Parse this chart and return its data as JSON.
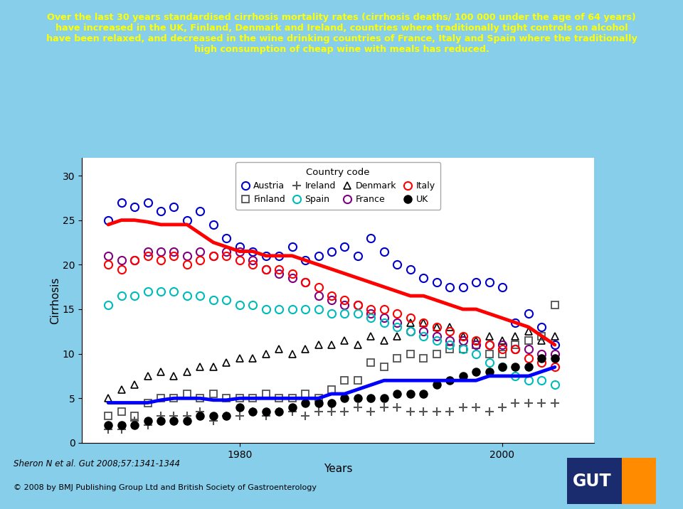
{
  "title_text": "Over the last 30 years standardised cirrhosis mortality rates (cirrhosis deaths/ 100 000 under the age of 64 years)\nhave increased in the UK, Finland, Denmark and Ireland, countries where traditionally tight controls on alcohol\nhave been relaxed, and decreased in the wine drinking countries of France, Italy and Spain where the traditionally\nhigh consumption of cheap wine with meals has reduced.",
  "title_color": "#FFFF00",
  "background_color": "#87CEEB",
  "plot_bg": "#FFFFFF",
  "xlabel": "Years",
  "ylabel": "Cirrhosis",
  "ylim": [
    0,
    32
  ],
  "yticks": [
    0,
    5,
    10,
    15,
    20,
    25,
    30
  ],
  "austria": {
    "label": "Austria",
    "color": "#0000CC",
    "marker": "o",
    "years": [
      1970,
      1971,
      1972,
      1973,
      1974,
      1975,
      1976,
      1977,
      1978,
      1979,
      1980,
      1981,
      1982,
      1983,
      1984,
      1985,
      1986,
      1987,
      1988,
      1989,
      1990,
      1991,
      1992,
      1993,
      1994,
      1995,
      1996,
      1997,
      1998,
      1999,
      2000,
      2001,
      2002,
      2003,
      2004
    ],
    "values": [
      25.0,
      27.0,
      26.5,
      27.0,
      26.0,
      26.5,
      25.0,
      26.0,
      24.5,
      23.0,
      22.0,
      21.5,
      21.0,
      21.0,
      22.0,
      20.5,
      21.0,
      21.5,
      22.0,
      21.0,
      23.0,
      21.5,
      20.0,
      19.5,
      18.5,
      18.0,
      17.5,
      17.5,
      18.0,
      18.0,
      17.5,
      13.5,
      14.5,
      13.0,
      11.0
    ]
  },
  "denmark": {
    "label": "Denmark",
    "color": "#000000",
    "marker": "^",
    "years": [
      1970,
      1971,
      1972,
      1973,
      1974,
      1975,
      1976,
      1977,
      1978,
      1979,
      1980,
      1981,
      1982,
      1983,
      1984,
      1985,
      1986,
      1987,
      1988,
      1989,
      1990,
      1991,
      1992,
      1993,
      1994,
      1995,
      1996,
      1997,
      1998,
      1999,
      2000,
      2001,
      2002,
      2003,
      2004
    ],
    "values": [
      5.0,
      6.0,
      6.5,
      7.5,
      8.0,
      7.5,
      8.0,
      8.5,
      8.5,
      9.0,
      9.5,
      9.5,
      10.0,
      10.5,
      10.0,
      10.5,
      11.0,
      11.0,
      11.5,
      11.0,
      12.0,
      11.5,
      12.0,
      13.5,
      13.5,
      13.0,
      13.0,
      12.0,
      11.5,
      12.0,
      11.5,
      12.0,
      12.5,
      11.5,
      12.0
    ]
  },
  "finland": {
    "label": "Finland",
    "color": "#444444",
    "marker": "s",
    "years": [
      1970,
      1971,
      1972,
      1973,
      1974,
      1975,
      1976,
      1977,
      1978,
      1979,
      1980,
      1981,
      1982,
      1983,
      1984,
      1985,
      1986,
      1987,
      1988,
      1989,
      1990,
      1991,
      1992,
      1993,
      1994,
      1995,
      1996,
      1997,
      1998,
      1999,
      2000,
      2001,
      2002,
      2003,
      2004
    ],
    "values": [
      3.0,
      3.5,
      3.0,
      4.5,
      5.0,
      5.0,
      5.5,
      5.0,
      5.5,
      5.0,
      5.0,
      5.0,
      5.5,
      5.0,
      5.0,
      5.5,
      5.0,
      6.0,
      7.0,
      7.0,
      9.0,
      8.5,
      9.5,
      10.0,
      9.5,
      10.0,
      10.5,
      10.5,
      11.0,
      10.0,
      10.0,
      11.0,
      11.5,
      12.0,
      15.5
    ]
  },
  "france": {
    "label": "France",
    "color": "#800080",
    "marker": "o",
    "years": [
      1970,
      1971,
      1972,
      1973,
      1974,
      1975,
      1976,
      1977,
      1978,
      1979,
      1980,
      1981,
      1982,
      1983,
      1984,
      1985,
      1986,
      1987,
      1988,
      1989,
      1990,
      1991,
      1992,
      1993,
      1994,
      1995,
      1996,
      1997,
      1998,
      1999,
      2000,
      2001,
      2002,
      2003,
      2004
    ],
    "values": [
      21.0,
      20.5,
      20.5,
      21.5,
      21.5,
      21.5,
      21.0,
      21.5,
      21.0,
      21.5,
      21.5,
      20.5,
      19.5,
      19.0,
      18.5,
      18.0,
      16.5,
      16.0,
      15.5,
      15.5,
      14.5,
      14.0,
      13.5,
      12.5,
      12.5,
      12.0,
      11.5,
      11.5,
      11.0,
      11.0,
      11.0,
      10.5,
      10.5,
      10.0,
      10.0
    ]
  },
  "ireland": {
    "label": "Ireland",
    "color": "#555555",
    "marker": "+",
    "years": [
      1970,
      1971,
      1972,
      1973,
      1974,
      1975,
      1976,
      1977,
      1978,
      1979,
      1980,
      1981,
      1982,
      1983,
      1984,
      1985,
      1986,
      1987,
      1988,
      1989,
      1990,
      1991,
      1992,
      1993,
      1994,
      1995,
      1996,
      1997,
      1998,
      1999,
      2000,
      2001,
      2002,
      2003,
      2004
    ],
    "values": [
      1.5,
      1.5,
      2.5,
      2.0,
      3.0,
      3.0,
      3.0,
      3.5,
      2.5,
      3.0,
      3.0,
      3.5,
      3.0,
      3.5,
      3.5,
      3.0,
      3.5,
      3.5,
      3.5,
      4.0,
      3.5,
      4.0,
      4.0,
      3.5,
      3.5,
      3.5,
      3.5,
      4.0,
      4.0,
      3.5,
      4.0,
      4.5,
      4.5,
      4.5,
      4.5
    ]
  },
  "italy": {
    "label": "Italy",
    "color": "#FF0000",
    "marker": "o",
    "years": [
      1970,
      1971,
      1972,
      1973,
      1974,
      1975,
      1976,
      1977,
      1978,
      1979,
      1980,
      1981,
      1982,
      1983,
      1984,
      1985,
      1986,
      1987,
      1988,
      1989,
      1990,
      1991,
      1992,
      1993,
      1994,
      1995,
      1996,
      1997,
      1998,
      1999,
      2000,
      2001,
      2002,
      2003,
      2004
    ],
    "values": [
      20.0,
      19.5,
      20.5,
      21.0,
      20.5,
      21.0,
      20.0,
      20.5,
      21.0,
      21.0,
      20.5,
      20.0,
      19.5,
      19.5,
      19.0,
      18.0,
      17.5,
      16.5,
      16.0,
      15.5,
      15.0,
      15.0,
      14.5,
      14.0,
      13.5,
      13.0,
      12.5,
      12.0,
      11.5,
      11.0,
      10.5,
      10.5,
      9.5,
      9.0,
      8.5
    ]
  },
  "spain": {
    "label": "Spain",
    "color": "#00BBBB",
    "marker": "o",
    "years": [
      1970,
      1971,
      1972,
      1973,
      1974,
      1975,
      1976,
      1977,
      1978,
      1979,
      1980,
      1981,
      1982,
      1983,
      1984,
      1985,
      1986,
      1987,
      1988,
      1989,
      1990,
      1991,
      1992,
      1993,
      1994,
      1995,
      1996,
      1997,
      1998,
      1999,
      2000,
      2001,
      2002,
      2003,
      2004
    ],
    "values": [
      15.5,
      16.5,
      16.5,
      17.0,
      17.0,
      17.0,
      16.5,
      16.5,
      16.0,
      16.0,
      15.5,
      15.5,
      15.0,
      15.0,
      15.0,
      15.0,
      15.0,
      14.5,
      14.5,
      14.5,
      14.0,
      13.5,
      13.0,
      12.5,
      12.0,
      11.5,
      11.0,
      10.5,
      10.0,
      9.0,
      8.5,
      7.5,
      7.0,
      7.0,
      6.5
    ]
  },
  "uk": {
    "label": "UK",
    "color": "#000000",
    "marker": "o",
    "filled": true,
    "years": [
      1970,
      1971,
      1972,
      1973,
      1974,
      1975,
      1976,
      1977,
      1978,
      1979,
      1980,
      1981,
      1982,
      1983,
      1984,
      1985,
      1986,
      1987,
      1988,
      1989,
      1990,
      1991,
      1992,
      1993,
      1994,
      1995,
      1996,
      1997,
      1998,
      1999,
      2000,
      2001,
      2002,
      2003,
      2004
    ],
    "values": [
      2.0,
      2.0,
      2.0,
      2.5,
      2.5,
      2.5,
      2.5,
      3.0,
      3.0,
      3.0,
      4.0,
      3.5,
      3.5,
      3.5,
      4.0,
      4.5,
      4.5,
      4.5,
      5.0,
      5.0,
      5.0,
      5.0,
      5.5,
      5.5,
      5.5,
      6.5,
      7.0,
      7.5,
      8.0,
      8.0,
      8.5,
      8.5,
      8.5,
      9.5,
      9.5
    ]
  },
  "uk_line": {
    "color": "#0000FF",
    "linewidth": 3.5,
    "years": [
      1970,
      1971,
      1972,
      1973,
      1974,
      1975,
      1976,
      1977,
      1978,
      1979,
      1980,
      1981,
      1982,
      1983,
      1984,
      1985,
      1986,
      1987,
      1988,
      1989,
      1990,
      1991,
      1992,
      1993,
      1994,
      1995,
      1996,
      1997,
      1998,
      1999,
      2000,
      2001,
      2002,
      2003,
      2004
    ],
    "values": [
      4.5,
      4.5,
      4.5,
      4.5,
      4.8,
      5.0,
      5.0,
      5.0,
      4.8,
      4.8,
      5.0,
      5.0,
      5.0,
      5.0,
      5.0,
      5.0,
      5.0,
      5.5,
      5.5,
      6.0,
      6.5,
      7.0,
      7.0,
      7.0,
      7.0,
      7.0,
      7.0,
      7.0,
      7.0,
      7.5,
      7.5,
      7.5,
      7.5,
      8.0,
      8.5
    ]
  },
  "france_line": {
    "color": "#FF0000",
    "linewidth": 3.5,
    "years": [
      1970,
      1971,
      1972,
      1973,
      1974,
      1975,
      1976,
      1977,
      1978,
      1979,
      1980,
      1981,
      1982,
      1983,
      1984,
      1985,
      1986,
      1987,
      1988,
      1989,
      1990,
      1991,
      1992,
      1993,
      1994,
      1995,
      1996,
      1997,
      1998,
      1999,
      2000,
      2001,
      2002,
      2003,
      2004
    ],
    "values": [
      24.5,
      25.0,
      25.0,
      24.8,
      24.5,
      24.5,
      24.5,
      23.5,
      22.5,
      22.0,
      21.5,
      21.5,
      21.0,
      21.0,
      21.0,
      20.5,
      20.0,
      19.5,
      19.0,
      18.5,
      18.0,
      17.5,
      17.0,
      16.5,
      16.5,
      16.0,
      15.5,
      15.0,
      15.0,
      14.5,
      14.0,
      13.5,
      13.0,
      12.0,
      11.0
    ]
  },
  "footer_left": "Sheron N et al. Gut 2008;57:1341-1344",
  "footer_right": "© 2008 by BMJ Publishing Group Ltd and British Society of Gastroenterology",
  "gut_blue": "#1a2c6e",
  "gut_orange": "#FF8C00"
}
